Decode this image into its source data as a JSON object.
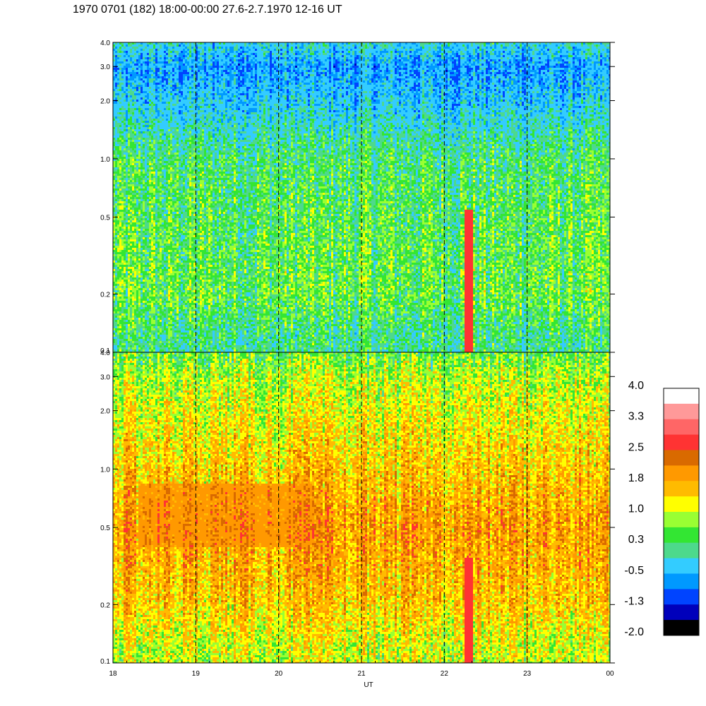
{
  "title": "1970 0701 (182) 18:00-00:00 27.6-2.7.1970  12-16 UT",
  "chart_data": [
    {
      "type": "heatmap",
      "panel": "top",
      "title": "",
      "xlabel": "",
      "ylabel": "",
      "yscale": "log",
      "ylim": [
        0.1,
        4.0
      ],
      "yticks": [
        "0.1",
        "0.2",
        "0.5",
        "1.0",
        "2.0",
        "3.0",
        "4.0"
      ],
      "xlim": [
        18,
        24
      ],
      "xticks": [],
      "vertical_dashed_lines_at": [
        19,
        20,
        21,
        22,
        23
      ],
      "grid": false,
      "levels_by_frequency": [
        {
          "freq": 0.12,
          "level": 0.5
        },
        {
          "freq": 0.2,
          "level": 0.8
        },
        {
          "freq": 0.5,
          "level": 0.7
        },
        {
          "freq": 1.0,
          "level": 0.6
        },
        {
          "freq": 2.0,
          "level": 0.0
        },
        {
          "freq": 3.0,
          "level": -0.3
        },
        {
          "freq": 4.0,
          "level": 0.2
        }
      ],
      "notable_features": [
        {
          "time": 22.3,
          "freq_range": [
            0.1,
            0.55
          ],
          "level": 2.5
        }
      ]
    },
    {
      "type": "heatmap",
      "panel": "bottom",
      "title": "",
      "xlabel": "UT",
      "ylabel": "",
      "yscale": "log",
      "ylim": [
        0.1,
        4.0
      ],
      "yticks": [
        "0.1",
        "0.2",
        "0.5",
        "1.0",
        "2.0",
        "3.0",
        "4.0"
      ],
      "xlim": [
        18,
        24
      ],
      "xticks": [
        "18",
        "19",
        "20",
        "21",
        "22",
        "23",
        "00"
      ],
      "vertical_dashed_lines_at": [
        19,
        20,
        21,
        22,
        23
      ],
      "grid": false,
      "levels_by_frequency": [
        {
          "freq": 0.12,
          "level": 1.2
        },
        {
          "freq": 0.2,
          "level": 1.6
        },
        {
          "freq": 0.5,
          "level": 1.9
        },
        {
          "freq": 1.0,
          "level": 1.6
        },
        {
          "freq": 2.0,
          "level": 1.3
        },
        {
          "freq": 3.0,
          "level": 1.1
        },
        {
          "freq": 4.0,
          "level": 0.8
        }
      ],
      "notable_features": [
        {
          "time_range": [
            18.3,
            20.4
          ],
          "freq_range": [
            0.4,
            0.85
          ],
          "level": 2.1
        },
        {
          "time": 22.3,
          "freq_range": [
            0.1,
            0.35
          ],
          "level": 2.5
        }
      ]
    }
  ],
  "colorbar": {
    "labels": [
      "4.0",
      "3.3",
      "2.5",
      "1.8",
      "1.0",
      "0.3",
      "-0.5",
      "-1.3",
      "-2.0"
    ],
    "colors_top_to_bottom": [
      "#ffffff",
      "#ff9999",
      "#ff6666",
      "#ff3333",
      "#d96a00",
      "#ff9900",
      "#ffbb00",
      "#ffff00",
      "#99ff33",
      "#33e633",
      "#4dd98c",
      "#33ccff",
      "#0099ff",
      "#0044ff",
      "#0000bb",
      "#000000"
    ]
  },
  "palette": {
    "levels": [
      -2.0,
      -1.5,
      -1.0,
      -0.5,
      -0.2,
      0.3,
      0.6,
      0.9,
      1.2,
      1.5,
      1.8,
      2.1,
      2.4,
      2.8,
      3.3,
      3.7
    ],
    "colors": [
      "#000000",
      "#0000bb",
      "#0044ff",
      "#0099ff",
      "#33ccff",
      "#4dd98c",
      "#33e633",
      "#99ff33",
      "#ffff00",
      "#ffbb00",
      "#ff9900",
      "#d96a00",
      "#ff3333",
      "#ff6666",
      "#ff9999",
      "#ffffff"
    ]
  }
}
